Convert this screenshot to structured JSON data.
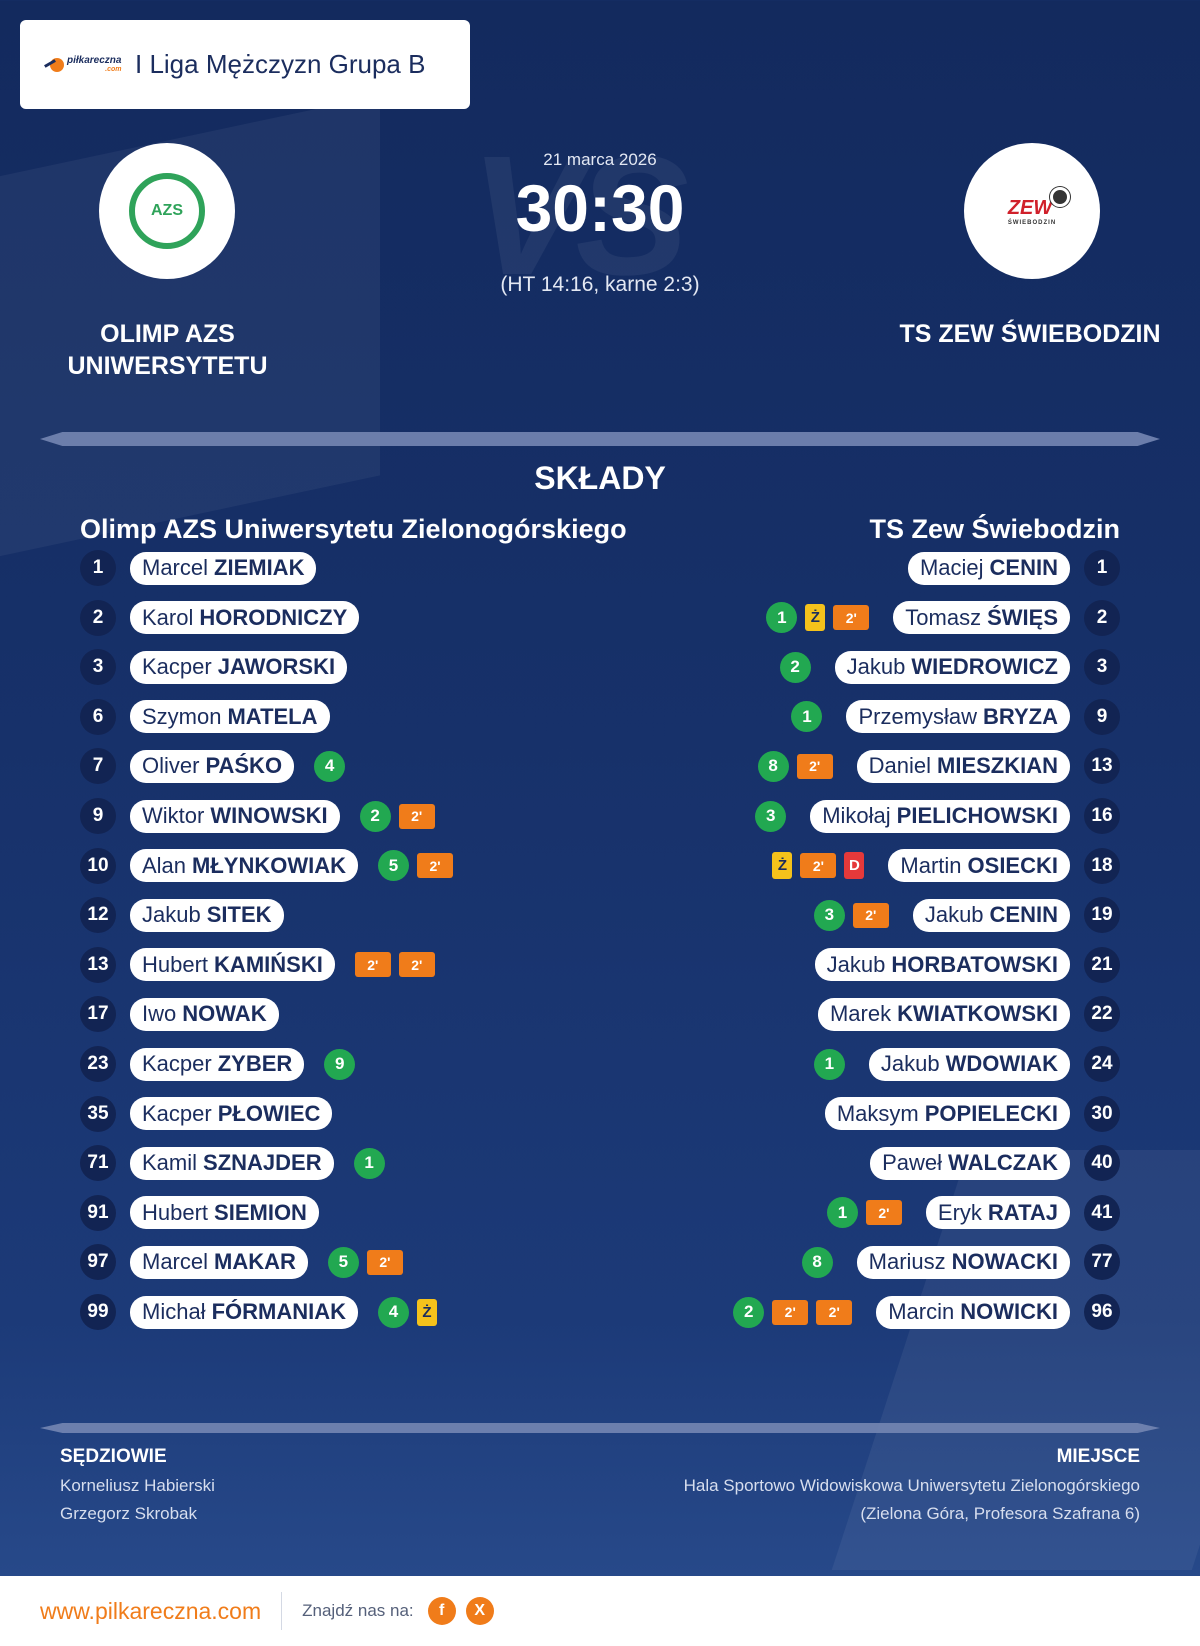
{
  "header": {
    "brand_top": "piłkareczna",
    "brand_bottom": ".com",
    "title": "I Liga Mężczyzn Grupa B"
  },
  "match": {
    "date": "21 marca 2026",
    "score": "30:30",
    "detail": "(HT 14:16, karne 2:3)",
    "home_short": "OLIMP AZS UNIWERSYTETU",
    "away_short": "TS ZEW ŚWIEBODZIN"
  },
  "lineups": {
    "title": "SKŁADY",
    "home_team": "Olimp AZS Uniwersytetu Zielonogórskiego",
    "away_team": "TS Zew Świebodzin",
    "home": [
      {
        "number": "1",
        "first": "Marcel",
        "last": "ZIEMIAK",
        "events": []
      },
      {
        "number": "2",
        "first": "Karol",
        "last": "HORODNICZY",
        "events": []
      },
      {
        "number": "3",
        "first": "Kacper",
        "last": "JAWORSKI",
        "events": []
      },
      {
        "number": "6",
        "first": "Szymon",
        "last": "MATELA",
        "events": []
      },
      {
        "number": "7",
        "first": "Oliver",
        "last": "PAŚKO",
        "events": [
          {
            "type": "goal",
            "label": "4"
          }
        ]
      },
      {
        "number": "9",
        "first": "Wiktor",
        "last": "WINOWSKI",
        "events": [
          {
            "type": "goal",
            "label": "2"
          },
          {
            "type": "susp",
            "label": "2'"
          }
        ]
      },
      {
        "number": "10",
        "first": "Alan",
        "last": "MŁYNKOWIAK",
        "events": [
          {
            "type": "goal",
            "label": "5"
          },
          {
            "type": "susp",
            "label": "2'"
          }
        ]
      },
      {
        "number": "12",
        "first": "Jakub",
        "last": "SITEK",
        "events": []
      },
      {
        "number": "13",
        "first": "Hubert",
        "last": "KAMIŃSKI",
        "events": [
          {
            "type": "susp",
            "label": "2'"
          },
          {
            "type": "susp",
            "label": "2'"
          }
        ]
      },
      {
        "number": "17",
        "first": "Iwo",
        "last": "NOWAK",
        "events": []
      },
      {
        "number": "23",
        "first": "Kacper",
        "last": "ZYBER",
        "events": [
          {
            "type": "goal",
            "label": "9"
          }
        ]
      },
      {
        "number": "35",
        "first": "Kacper",
        "last": "PŁOWIEC",
        "events": []
      },
      {
        "number": "71",
        "first": "Kamil",
        "last": "SZNAJDER",
        "events": [
          {
            "type": "goal",
            "label": "1"
          }
        ]
      },
      {
        "number": "91",
        "first": "Hubert",
        "last": "SIEMION",
        "events": []
      },
      {
        "number": "97",
        "first": "Marcel",
        "last": "MAKAR",
        "events": [
          {
            "type": "goal",
            "label": "5"
          },
          {
            "type": "susp",
            "label": "2'"
          }
        ]
      },
      {
        "number": "99",
        "first": "Michał",
        "last": "FÓRMANIAK",
        "events": [
          {
            "type": "goal",
            "label": "4"
          },
          {
            "type": "yellow",
            "label": "Ż"
          }
        ]
      }
    ],
    "away": [
      {
        "number": "1",
        "first": "Maciej",
        "last": "CENIN",
        "events": []
      },
      {
        "number": "2",
        "first": "Tomasz",
        "last": "ŚWIĘS",
        "events": [
          {
            "type": "susp",
            "label": "2'"
          },
          {
            "type": "yellow",
            "label": "Ż"
          },
          {
            "type": "goal",
            "label": "1"
          }
        ]
      },
      {
        "number": "3",
        "first": "Jakub",
        "last": "WIEDROWICZ",
        "events": [
          {
            "type": "goal",
            "label": "2"
          }
        ]
      },
      {
        "number": "9",
        "first": "Przemysław",
        "last": "BRYZA",
        "events": [
          {
            "type": "goal",
            "label": "1"
          }
        ]
      },
      {
        "number": "13",
        "first": "Daniel",
        "last": "MIESZKIAN",
        "events": [
          {
            "type": "susp",
            "label": "2'"
          },
          {
            "type": "goal",
            "label": "8"
          }
        ]
      },
      {
        "number": "16",
        "first": "Mikołaj",
        "last": "PIELICHOWSKI",
        "events": [
          {
            "type": "goal",
            "label": "3"
          }
        ]
      },
      {
        "number": "18",
        "first": "Martin",
        "last": "OSIECKI",
        "events": [
          {
            "type": "red",
            "label": "D"
          },
          {
            "type": "susp",
            "label": "2'"
          },
          {
            "type": "yellow",
            "label": "Ż"
          }
        ]
      },
      {
        "number": "19",
        "first": "Jakub",
        "last": "CENIN",
        "events": [
          {
            "type": "susp",
            "label": "2'"
          },
          {
            "type": "goal",
            "label": "3"
          }
        ]
      },
      {
        "number": "21",
        "first": "Jakub",
        "last": "HORBATOWSKI",
        "events": []
      },
      {
        "number": "22",
        "first": "Marek",
        "last": "KWIATKOWSKI",
        "events": []
      },
      {
        "number": "24",
        "first": "Jakub",
        "last": "WDOWIAK",
        "events": [
          {
            "type": "goal",
            "label": "1"
          }
        ]
      },
      {
        "number": "30",
        "first": "Maksym",
        "last": "POPIELECKI",
        "events": []
      },
      {
        "number": "40",
        "first": "Paweł",
        "last": "WALCZAK",
        "events": []
      },
      {
        "number": "41",
        "first": "Eryk",
        "last": "RATAJ",
        "events": [
          {
            "type": "susp",
            "label": "2'"
          },
          {
            "type": "goal",
            "label": "1"
          }
        ]
      },
      {
        "number": "77",
        "first": "Mariusz",
        "last": "NOWACKI",
        "events": [
          {
            "type": "goal",
            "label": "8"
          }
        ]
      },
      {
        "number": "96",
        "first": "Marcin",
        "last": "NOWICKI",
        "events": [
          {
            "type": "susp",
            "label": "2'"
          },
          {
            "type": "susp",
            "label": "2'"
          },
          {
            "type": "goal",
            "label": "2"
          }
        ]
      }
    ]
  },
  "info": {
    "referees_title": "SĘDZIOWIE",
    "referees": [
      "Korneliusz Habierski",
      "Grzegorz Skrobak"
    ],
    "venue_title": "MIEJSCE",
    "venue_line1": "Hala Sportowo Widowiskowa Uniwersytetu Zielonogórskiego",
    "venue_line2": "(Zielona Góra, Profesora Szafrana 6)"
  },
  "footer": {
    "url": "www.pilkareczna.com",
    "find_us": "Znajdź nas na:",
    "social": [
      {
        "icon": "facebook-icon",
        "glyph": "f"
      },
      {
        "icon": "x-icon",
        "glyph": "X"
      }
    ]
  },
  "colors": {
    "accent": "#f07c1a",
    "goal": "#22a851",
    "yellow": "#f5c21b",
    "red": "#e5393a",
    "navy": "#1b2d5e"
  }
}
